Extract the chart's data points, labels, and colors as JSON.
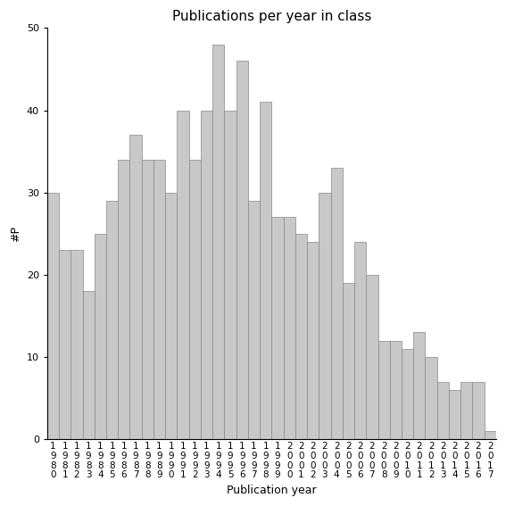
{
  "title": "Publications per year in class",
  "xlabel": "Publication year",
  "ylabel": "#P",
  "ylim": [
    0,
    50
  ],
  "yticks": [
    0,
    10,
    20,
    30,
    40,
    50
  ],
  "bar_color": "#c8c8c8",
  "bar_edgecolor": "#888888",
  "categories": [
    "1980",
    "1981",
    "1982",
    "1983",
    "1984",
    "1985",
    "1986",
    "1987",
    "1988",
    "1989",
    "1990",
    "1991",
    "1992",
    "1993",
    "1994",
    "1995",
    "1996",
    "1997",
    "1998",
    "1999",
    "2000",
    "2001",
    "2002",
    "2003",
    "2004",
    "2005",
    "2006",
    "2007",
    "2008",
    "2009",
    "2010",
    "2011",
    "2012",
    "2013",
    "2014",
    "2015",
    "2016",
    "2017"
  ],
  "values": [
    30,
    23,
    23,
    18,
    25,
    29,
    34,
    37,
    34,
    34,
    30,
    40,
    34,
    40,
    48,
    40,
    46,
    29,
    41,
    27,
    27,
    25,
    24,
    30,
    33,
    19,
    24,
    20,
    12,
    12,
    11,
    13,
    10,
    7,
    6,
    7,
    7,
    1
  ],
  "tick_fontsize": 7.5,
  "title_fontsize": 11,
  "xlabel_fontsize": 9,
  "ylabel_fontsize": 9
}
